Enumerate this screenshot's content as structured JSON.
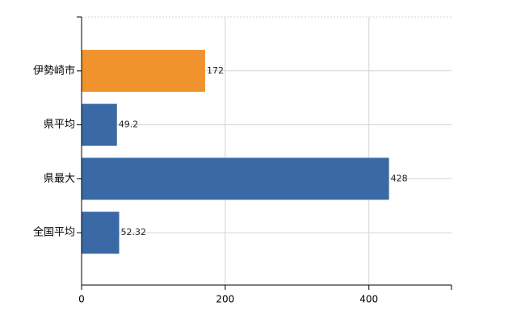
{
  "chart_data": {
    "type": "bar",
    "orientation": "horizontal",
    "categories": [
      "伊勢崎市",
      "県平均",
      "県最大",
      "全国平均"
    ],
    "values": [
      172,
      49.2,
      428,
      52.32
    ],
    "colors": [
      "#f0922e",
      "#3a69a6",
      "#3a69a6",
      "#3a69a6"
    ],
    "xlim": [
      0,
      515
    ],
    "xticks": [
      0,
      200,
      400
    ],
    "grid": true
  }
}
